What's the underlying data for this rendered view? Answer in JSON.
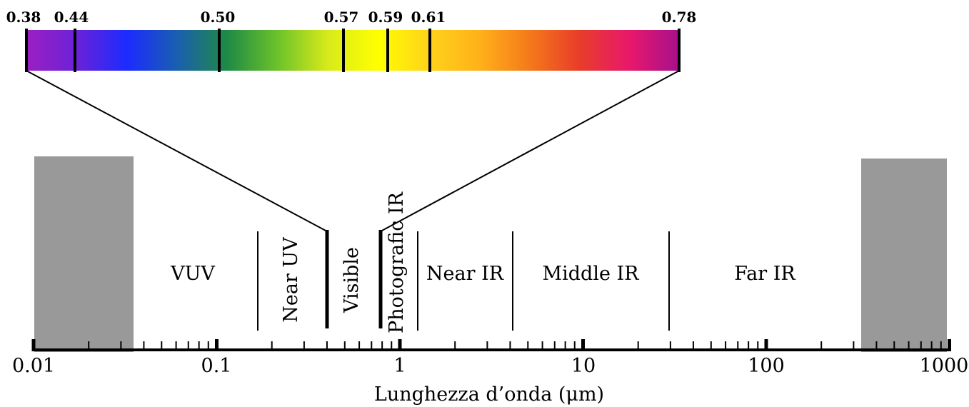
{
  "spectrum": {
    "visible_ticks": [
      "0.38",
      "0.44",
      "0.50",
      "0.57",
      "0.59",
      "0.61",
      "0.78"
    ],
    "gradient_colors": [
      "#9b1fc2",
      "#6a22d8",
      "#1c2bff",
      "#1a5fb0",
      "#1f8a45",
      "#6cc22a",
      "#d8ea1a",
      "#ffff00",
      "#ffd21a",
      "#ffb21a",
      "#f57a1a",
      "#e83d2a",
      "#e8186a",
      "#a5108e"
    ]
  },
  "bands": [
    "VUV",
    "Near UV",
    "Visible",
    "Photografic IR",
    "Near IR",
    "Middle IR",
    "Far IR"
  ],
  "axis": {
    "title": "Lunghezza d’onda (μm)",
    "tick_labels": [
      "0.01",
      "0.1",
      "1",
      "10",
      "100",
      "1000"
    ]
  },
  "colors": {
    "gray_box": "#999999",
    "line": "#000000"
  }
}
